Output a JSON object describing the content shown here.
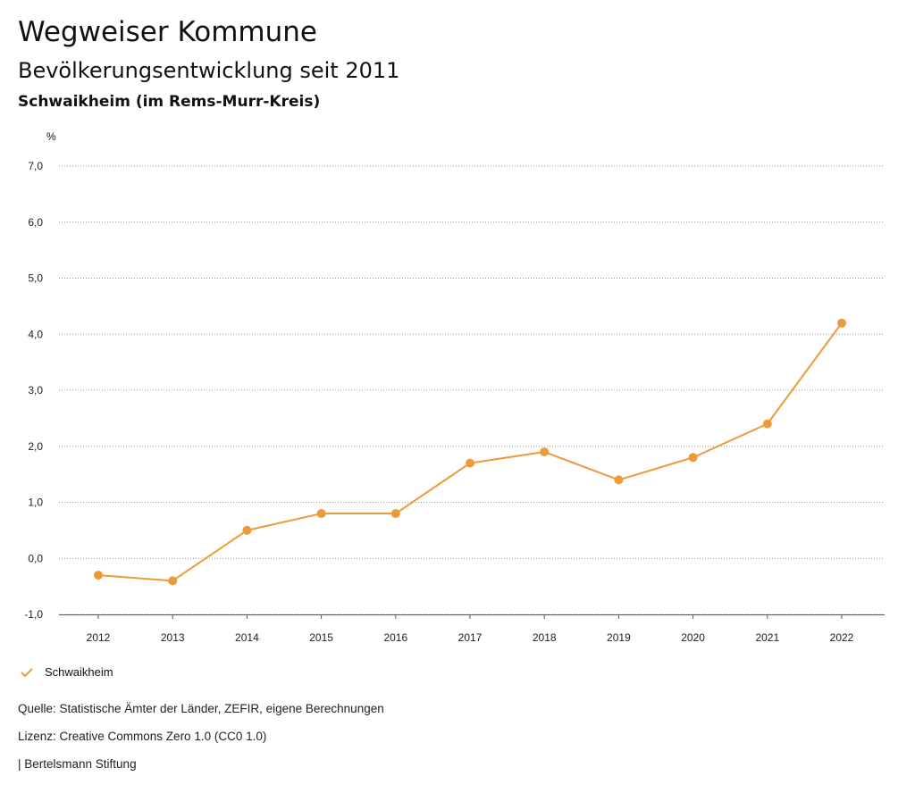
{
  "header": {
    "title": "Wegweiser Kommune",
    "subtitle": "Bevölkerungsentwicklung seit 2011",
    "place": "Schwaikheim (im Rems-Murr-Kreis)"
  },
  "chart_data": {
    "type": "line",
    "ylabel": "%",
    "ylim": [
      -1.0,
      7.0
    ],
    "yticks": [
      "-1,0",
      "0,0",
      "1,0",
      "2,0",
      "3,0",
      "4,0",
      "5,0",
      "6,0",
      "7,0"
    ],
    "ytick_values": [
      -1,
      0,
      1,
      2,
      3,
      4,
      5,
      6,
      7
    ],
    "categories": [
      "2012",
      "2013",
      "2014",
      "2015",
      "2016",
      "2017",
      "2018",
      "2019",
      "2020",
      "2021",
      "2022"
    ],
    "series": [
      {
        "name": "Schwaikheim",
        "color": "#ec9a3a",
        "values": [
          -0.3,
          -0.4,
          0.5,
          0.8,
          0.8,
          1.7,
          1.9,
          1.4,
          1.8,
          2.4,
          4.2
        ]
      }
    ],
    "grid": true,
    "legend": "bottom-left"
  },
  "footer": {
    "source": "Quelle: Statistische Ämter der Länder, ZEFIR, eigene Berechnungen",
    "license": "Lizenz: Creative Commons Zero 1.0 (CC0 1.0)",
    "publisher": "| Bertelsmann Stiftung"
  }
}
